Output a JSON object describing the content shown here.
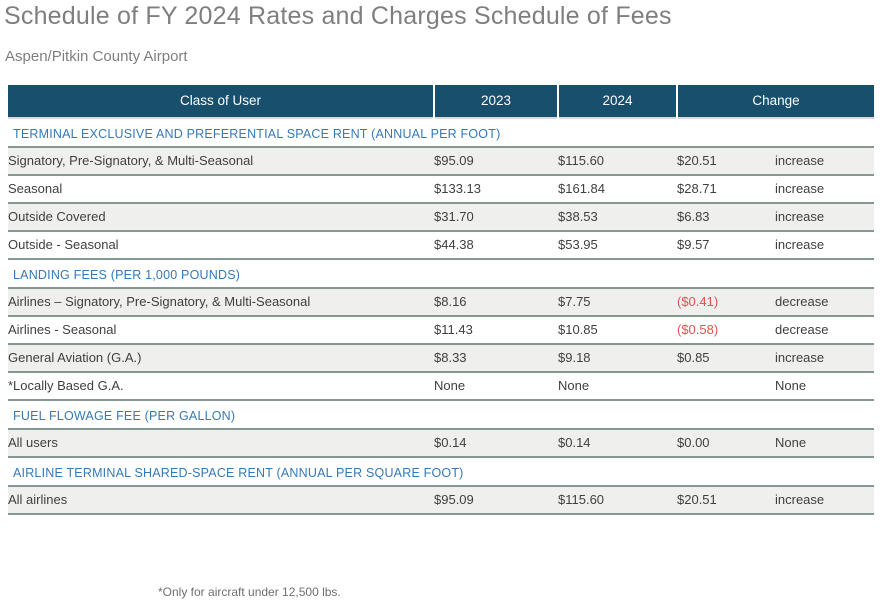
{
  "page": {
    "title": "Schedule of FY 2024 Rates and Charges Schedule of Fees",
    "subtitle": "Aspen/Pitkin County Airport",
    "footnote": "*Only for aircraft under 12,500 lbs."
  },
  "colors": {
    "header_bg": "#174f6d",
    "section_blue": "#3579b8",
    "border_green": "#84988f",
    "row_shade": "#efefee",
    "negative_red": "#e35252",
    "title_gray": "#7f7f7f"
  },
  "table": {
    "headers": [
      "Class of User",
      "2023",
      "2024",
      "Change"
    ],
    "sections": [
      {
        "title": "TERMINAL EXCLUSIVE AND PREFERENTIAL SPACE RENT (ANNUAL PER FOOT)",
        "rows": [
          {
            "class_of_user": "Signatory, Pre-Signatory, & Multi-Seasonal",
            "y2023": "$95.09",
            "y2024": "$115.60",
            "change": "$20.51",
            "direction": "increase",
            "negative": false
          },
          {
            "class_of_user": "Seasonal",
            "y2023": "$133.13",
            "y2024": "$161.84",
            "change": "$28.71",
            "direction": "increase",
            "negative": false
          },
          {
            "class_of_user": "Outside Covered",
            "y2023": "$31.70",
            "y2024": "$38.53",
            "change": "$6.83",
            "direction": "increase",
            "negative": false
          },
          {
            "class_of_user": "Outside - Seasonal",
            "y2023": "$44.38",
            "y2024": "$53.95",
            "change": "$9.57",
            "direction": "increase",
            "negative": false
          }
        ]
      },
      {
        "title": "LANDING FEES (PER 1,000 POUNDS)",
        "rows": [
          {
            "class_of_user": "Airlines – Signatory, Pre-Signatory, & Multi-Seasonal",
            "y2023": "$8.16",
            "y2024": "$7.75",
            "change": "($0.41)",
            "direction": "decrease",
            "negative": true
          },
          {
            "class_of_user": "Airlines - Seasonal",
            "y2023": "$11.43",
            "y2024": "$10.85",
            "change": "($0.58)",
            "direction": "decrease",
            "negative": true
          },
          {
            "class_of_user": "General Aviation (G.A.)",
            "y2023": "$8.33",
            "y2024": "$9.18",
            "change": "$0.85",
            "direction": "increase",
            "negative": false
          },
          {
            "class_of_user": "*Locally Based G.A.",
            "y2023": "None",
            "y2024": "None",
            "change": "",
            "direction": "None",
            "negative": false
          }
        ]
      },
      {
        "title": "FUEL FLOWAGE FEE (PER GALLON)",
        "rows": [
          {
            "class_of_user": "All users",
            "y2023": "$0.14",
            "y2024": "$0.14",
            "change": "$0.00",
            "direction": "None",
            "negative": false
          }
        ]
      },
      {
        "title": "AIRLINE TERMINAL SHARED-SPACE RENT (ANNUAL PER SQUARE FOOT)",
        "rows": [
          {
            "class_of_user": "All airlines",
            "y2023": "$95.09",
            "y2024": "$115.60",
            "change": "$20.51",
            "direction": "increase",
            "negative": false
          }
        ]
      }
    ]
  }
}
